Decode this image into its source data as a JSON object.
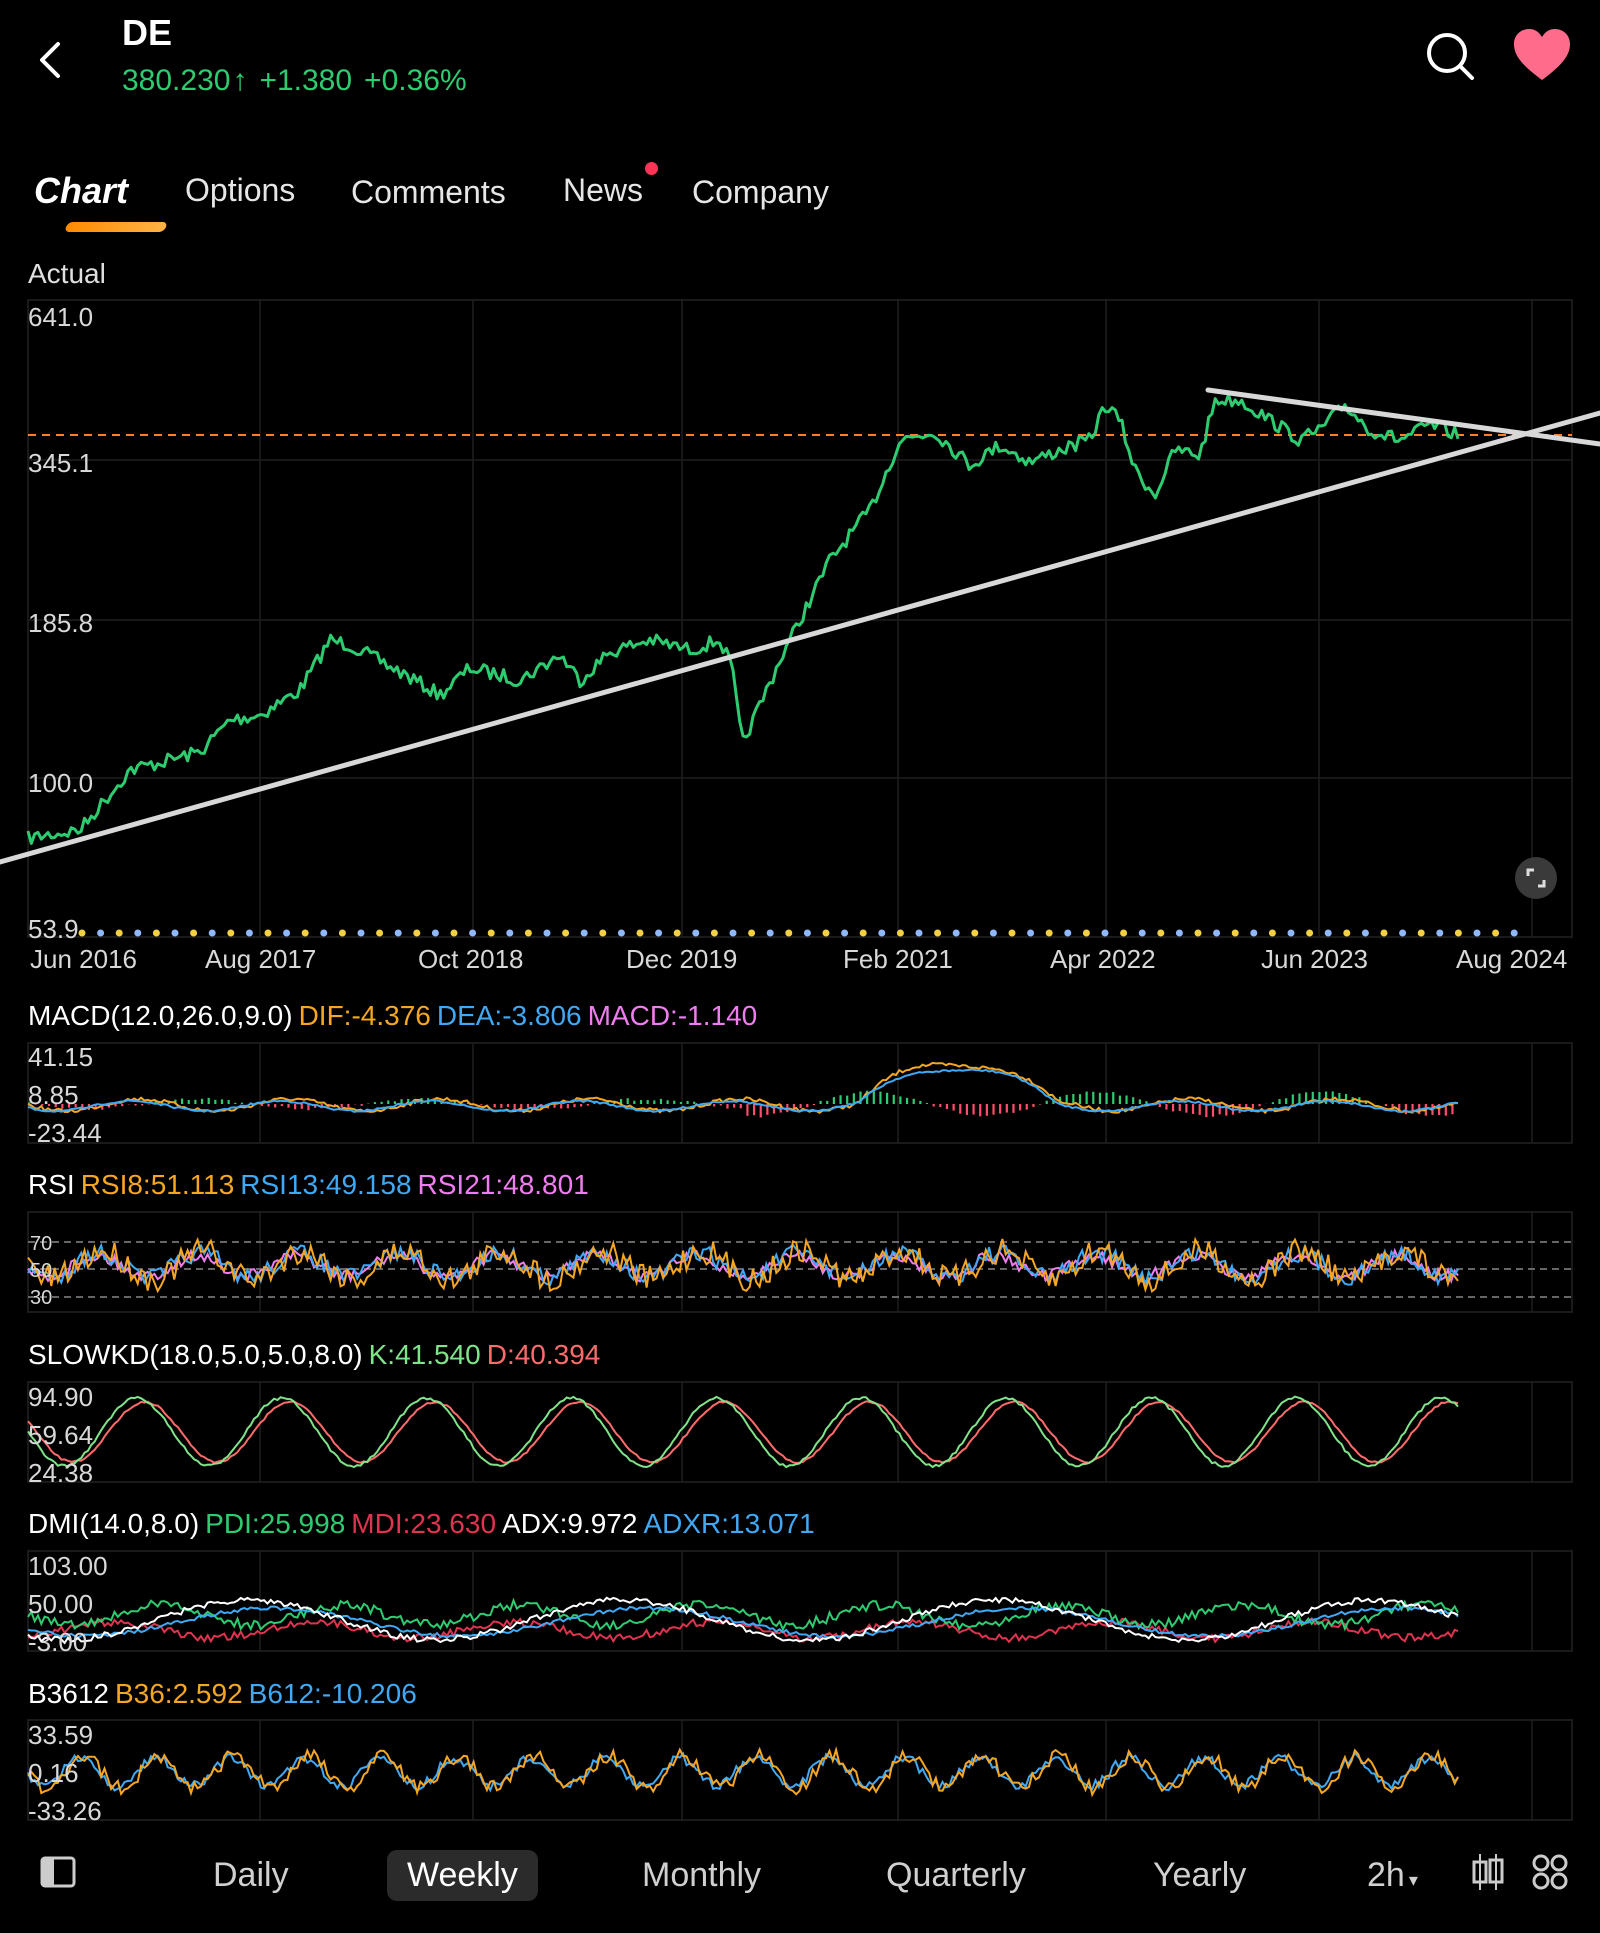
{
  "header": {
    "ticker": "DE",
    "price": "380.230",
    "arrow": "↑",
    "change": "+1.380",
    "change_pct": "+0.36%",
    "up_color": "#2ecc71"
  },
  "tabs": [
    {
      "label": "Chart",
      "active": true
    },
    {
      "label": "Options",
      "active": false
    },
    {
      "label": "Comments",
      "active": false
    },
    {
      "label": "News",
      "active": false,
      "badge": true
    },
    {
      "label": "Company",
      "active": false
    }
  ],
  "main_chart": {
    "scale_label": "Actual",
    "y_ticks": [
      "641.0",
      "345.1",
      "185.8",
      "100.0",
      "53.9"
    ],
    "x_ticks": [
      "Jun 2016",
      "Aug 2017",
      "Oct 2018",
      "Dec 2019",
      "Feb 2021",
      "Apr 2022",
      "Jun 2023",
      "Aug 2024"
    ],
    "line_color": "#2ecc71",
    "last_price_line_color": "#ff7f2a"
  },
  "macd": {
    "name": "MACD(12.0,26.0,9.0)",
    "dif": "DIF:-4.376",
    "dea": "DEA:-3.806",
    "macd": "MACD:-1.140",
    "y_ticks": [
      "41.15",
      "8.85",
      "-23.44"
    ]
  },
  "rsi": {
    "name": "RSI",
    "rsi8": "RSI8:51.113",
    "rsi13": "RSI13:49.158",
    "rsi21": "RSI21:48.801",
    "y_ticks": [
      "70",
      "50",
      "30"
    ]
  },
  "slowkd": {
    "name": "SLOWKD(18.0,5.0,5.0,8.0)",
    "k": "K:41.540",
    "d": "D:40.394",
    "y_ticks": [
      "94.90",
      "59.64",
      "24.38"
    ]
  },
  "dmi": {
    "name": "DMI(14.0,8.0)",
    "pdi": "PDI:25.998",
    "mdi": "MDI:23.630",
    "adx": "ADX:9.972",
    "adxr": "ADXR:13.071",
    "y_ticks": [
      "103.00",
      "50.00",
      "-3.00"
    ]
  },
  "b3612": {
    "name": "B3612",
    "b36": "B36:2.592",
    "b612": "B612:-10.206",
    "y_ticks": [
      "33.59",
      "0.16",
      "-33.26"
    ]
  },
  "bottom_bar": {
    "periods": [
      {
        "label": "Daily",
        "active": false
      },
      {
        "label": "Weekly",
        "active": true
      },
      {
        "label": "Monthly",
        "active": false
      },
      {
        "label": "Quarterly",
        "active": false
      },
      {
        "label": "Yearly",
        "active": false
      }
    ],
    "interval": "2h",
    "icons": [
      "sidebar-toggle-icon",
      "candlestick-icon",
      "grid-icon"
    ]
  },
  "colors": {
    "orange": "#f5a623",
    "blue": "#3fa9f5",
    "pink": "#f07df0",
    "green": "#2ecc71",
    "red": "#ff4d6d"
  }
}
